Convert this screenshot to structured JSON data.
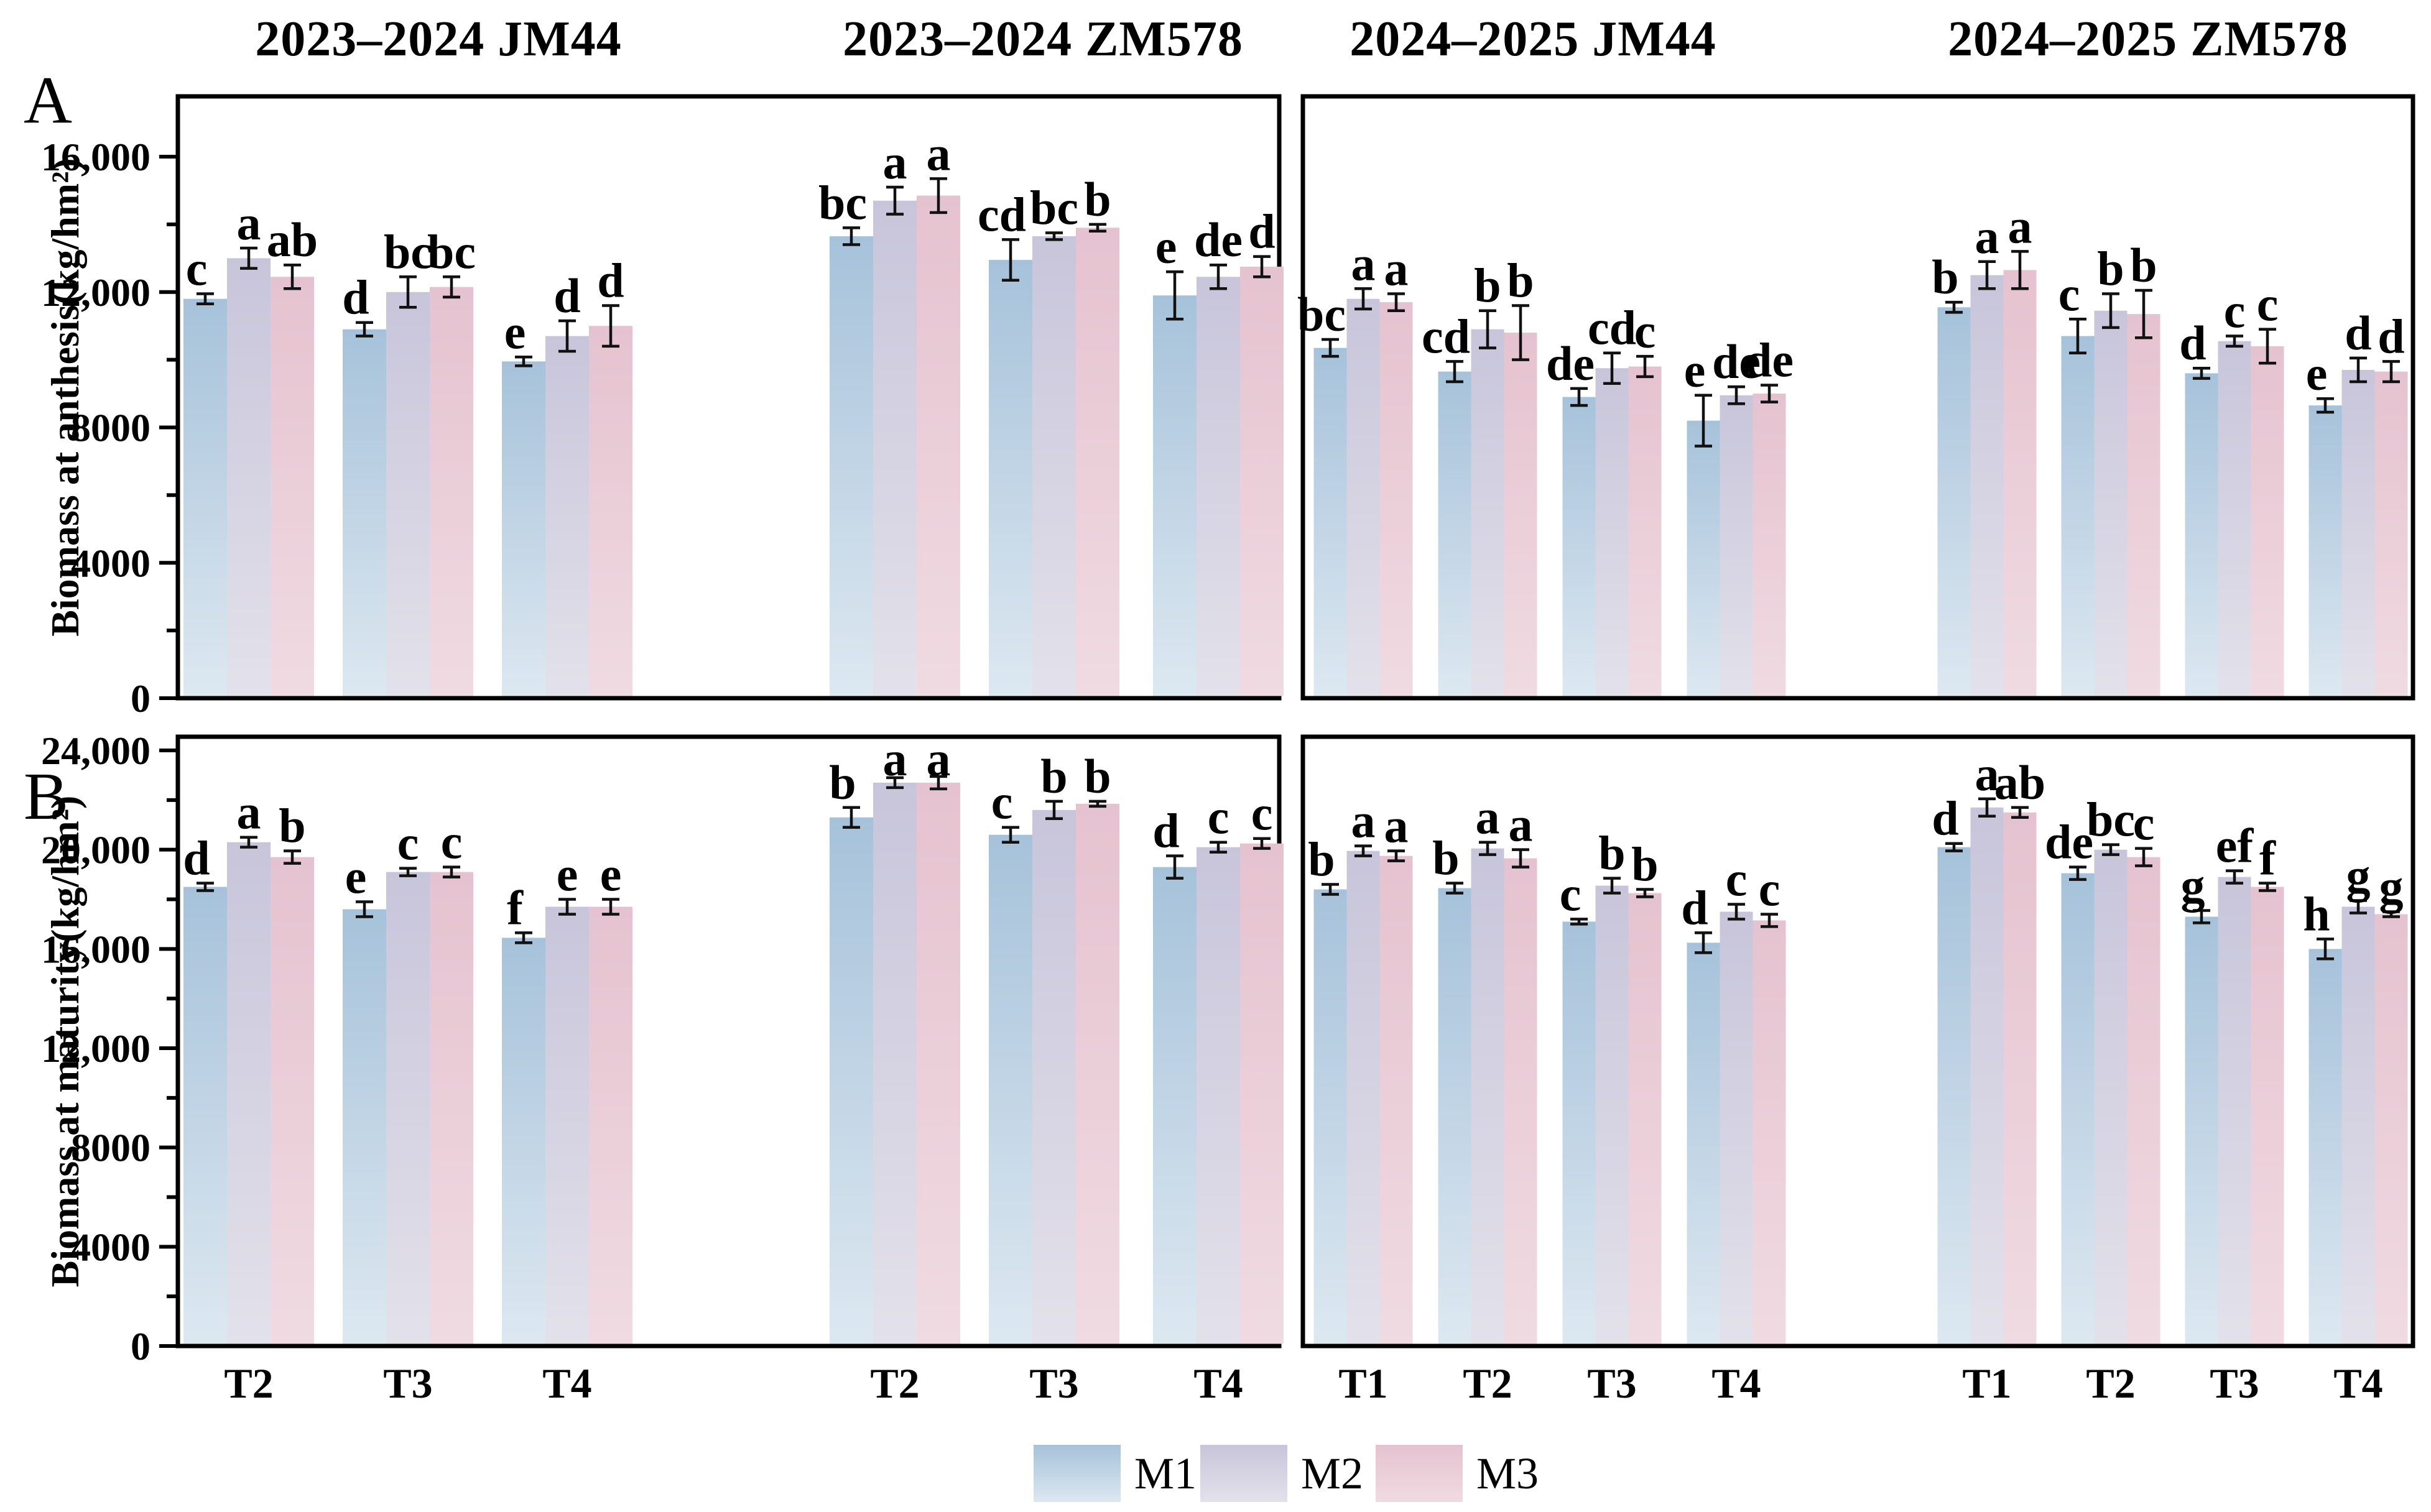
{
  "figure": {
    "panel_a": {
      "letter": "A",
      "ylabel": "Biomass at anthesis(kg/hm²)"
    },
    "panel_b": {
      "letter": "B",
      "ylabel": "Biomass at maturity(kg/hm²)"
    }
  },
  "legend": {
    "items": [
      {
        "label": "M1",
        "color_top": "#a6c2da",
        "color_bottom": "#dde8f1"
      },
      {
        "label": "M2",
        "color_top": "#c8c5db",
        "color_bottom": "#e3e1ea"
      },
      {
        "label": "M3",
        "color_top": "#e5c2cf",
        "color_bottom": "#f0dbe2"
      }
    ]
  },
  "chart_data": {
    "type": "bar",
    "unit": "kg/hm²",
    "grid": false,
    "error_bars": true,
    "legend_position": "bottom",
    "group_titles": [
      "2023–2024 JM44",
      "2023–2024 ZM578",
      "2024–2025 JM44",
      "2024–2025 ZM578"
    ],
    "rows": [
      {
        "id": "A",
        "ylabel": "Biomass at anthesis(kg/hm²)",
        "ylim": [
          0,
          16000
        ],
        "yticks": [
          {
            "v": 0,
            "label": "0"
          },
          {
            "v": 4000,
            "label": "4000"
          },
          {
            "v": 8000,
            "label": "8000"
          },
          {
            "v": 12000,
            "label": "12,000"
          },
          {
            "v": 16000,
            "label": "16,000"
          }
        ],
        "yticks_minor": [
          2000,
          6000,
          10000,
          14000
        ],
        "boxes": [
          {
            "groups": [
              {
                "title": "2023–2024 JM44",
                "categories": [
                  "T2",
                  "T3",
                  "T4"
                ],
                "series": [
                  {
                    "name": "M1",
                    "values": [
                      11800,
                      10900,
                      9950
                    ],
                    "errors": [
                      150,
                      200,
                      130
                    ],
                    "letters": [
                      "c",
                      "d",
                      "e"
                    ]
                  },
                  {
                    "name": "M2",
                    "values": [
                      13000,
                      12000,
                      10700
                    ],
                    "errors": [
                      300,
                      450,
                      450
                    ],
                    "letters": [
                      "a",
                      "bc",
                      "d"
                    ]
                  },
                  {
                    "name": "M3",
                    "values": [
                      12450,
                      12150,
                      11000
                    ],
                    "errors": [
                      350,
                      300,
                      600
                    ],
                    "letters": [
                      "ab",
                      "bc",
                      "d"
                    ]
                  }
                ]
              },
              {
                "title": "2023–2024 ZM578",
                "categories": [
                  "T2",
                  "T3",
                  "T4"
                ],
                "series": [
                  {
                    "name": "M1",
                    "values": [
                      13650,
                      12950,
                      11900
                    ],
                    "errors": [
                      250,
                      600,
                      700
                    ],
                    "letters": [
                      "bc",
                      "cd",
                      "e"
                    ]
                  },
                  {
                    "name": "M2",
                    "values": [
                      14700,
                      13650,
                      12450
                    ],
                    "errors": [
                      400,
                      100,
                      350
                    ],
                    "letters": [
                      "a",
                      "bc",
                      "de"
                    ]
                  },
                  {
                    "name": "M3",
                    "values": [
                      14850,
                      13900,
                      12750
                    ],
                    "errors": [
                      500,
                      100,
                      300
                    ],
                    "letters": [
                      "a",
                      "b",
                      "d"
                    ]
                  }
                ]
              }
            ]
          },
          {
            "groups": [
              {
                "title": "2024–2025 JM44",
                "categories": [
                  "T1",
                  "T2",
                  "T3",
                  "T4"
                ],
                "series": [
                  {
                    "name": "M1",
                    "values": [
                      10350,
                      9650,
                      8900,
                      8200
                    ],
                    "errors": [
                      250,
                      300,
                      250,
                      750
                    ],
                    "letters": [
                      "bc",
                      "cd",
                      "de",
                      "e"
                    ]
                  },
                  {
                    "name": "M2",
                    "values": [
                      11800,
                      10900,
                      9750,
                      8950
                    ],
                    "errors": [
                      300,
                      550,
                      450,
                      250
                    ],
                    "letters": [
                      "a",
                      "b",
                      "cd",
                      "de"
                    ]
                  },
                  {
                    "name": "M3",
                    "values": [
                      11700,
                      10800,
                      9800,
                      9000
                    ],
                    "errors": [
                      250,
                      800,
                      300,
                      250
                    ],
                    "letters": [
                      "a",
                      "b",
                      "c",
                      "de"
                    ]
                  }
                ]
              },
              {
                "title": "2024–2025 ZM578",
                "categories": [
                  "T1",
                  "T2",
                  "T3",
                  "T4"
                ],
                "series": [
                  {
                    "name": "M1",
                    "values": [
                      11550,
                      10700,
                      9600,
                      8650
                    ],
                    "errors": [
                      150,
                      500,
                      150,
                      200
                    ],
                    "letters": [
                      "b",
                      "c",
                      "d",
                      "e"
                    ]
                  },
                  {
                    "name": "M2",
                    "values": [
                      12500,
                      11450,
                      10550,
                      9700
                    ],
                    "errors": [
                      400,
                      500,
                      150,
                      350
                    ],
                    "letters": [
                      "a",
                      "b",
                      "c",
                      "d"
                    ]
                  },
                  {
                    "name": "M3",
                    "values": [
                      12650,
                      11350,
                      10400,
                      9650
                    ],
                    "errors": [
                      550,
                      700,
                      500,
                      300
                    ],
                    "letters": [
                      "a",
                      "b",
                      "c",
                      "d"
                    ]
                  }
                ]
              }
            ]
          }
        ]
      },
      {
        "id": "B",
        "ylabel": "Biomass at maturity(kg/hm²)",
        "ylim": [
          0,
          24000
        ],
        "yticks": [
          {
            "v": 0,
            "label": "0"
          },
          {
            "v": 4000,
            "label": "4000"
          },
          {
            "v": 8000,
            "label": "8000"
          },
          {
            "v": 12000,
            "label": "12,000"
          },
          {
            "v": 16000,
            "label": "16,000"
          },
          {
            "v": 20000,
            "label": "20,000"
          },
          {
            "v": 24000,
            "label": "24,000"
          }
        ],
        "yticks_minor": [
          2000,
          6000,
          10000,
          14000,
          18000,
          22000
        ],
        "boxes": [
          {
            "groups": [
              {
                "title": "2023–2024 JM44",
                "categories": [
                  "T2",
                  "T3",
                  "T4"
                ],
                "series": [
                  {
                    "name": "M1",
                    "values": [
                      18500,
                      17600,
                      16450
                    ],
                    "errors": [
                      150,
                      300,
                      200
                    ],
                    "letters": [
                      "d",
                      "e",
                      "f"
                    ]
                  },
                  {
                    "name": "M2",
                    "values": [
                      20300,
                      19100,
                      17700
                    ],
                    "errors": [
                      200,
                      150,
                      300
                    ],
                    "letters": [
                      "a",
                      "c",
                      "e"
                    ]
                  },
                  {
                    "name": "M3",
                    "values": [
                      19700,
                      19100,
                      17700
                    ],
                    "errors": [
                      250,
                      200,
                      300
                    ],
                    "letters": [
                      "b",
                      "c",
                      "e"
                    ]
                  }
                ]
              },
              {
                "title": "2023–2024 ZM578",
                "categories": [
                  "T2",
                  "T3",
                  "T4"
                ],
                "series": [
                  {
                    "name": "M1",
                    "values": [
                      21300,
                      20600,
                      19300
                    ],
                    "errors": [
                      400,
                      300,
                      450
                    ],
                    "letters": [
                      "b",
                      "c",
                      "d"
                    ]
                  },
                  {
                    "name": "M2",
                    "values": [
                      22700,
                      21600,
                      20100
                    ],
                    "errors": [
                      200,
                      350,
                      200
                    ],
                    "letters": [
                      "a",
                      "b",
                      "c"
                    ]
                  },
                  {
                    "name": "M3",
                    "values": [
                      22700,
                      21850,
                      20250
                    ],
                    "errors": [
                      250,
                      100,
                      200
                    ],
                    "letters": [
                      "a",
                      "b",
                      "c"
                    ]
                  }
                ]
              }
            ]
          },
          {
            "groups": [
              {
                "title": "2024–2025 JM44",
                "categories": [
                  "T1",
                  "T2",
                  "T3",
                  "T4"
                ],
                "series": [
                  {
                    "name": "M1",
                    "values": [
                      18400,
                      18450,
                      17100,
                      16250
                    ],
                    "errors": [
                      200,
                      200,
                      100,
                      400
                    ],
                    "letters": [
                      "b",
                      "b",
                      "c",
                      "d"
                    ]
                  },
                  {
                    "name": "M2",
                    "values": [
                      19950,
                      20050,
                      18550,
                      17500
                    ],
                    "errors": [
                      200,
                      250,
                      300,
                      300
                    ],
                    "letters": [
                      "a",
                      "a",
                      "b",
                      "c"
                    ]
                  },
                  {
                    "name": "M3",
                    "values": [
                      19750,
                      19650,
                      18250,
                      17150
                    ],
                    "errors": [
                      200,
                      350,
                      150,
                      250
                    ],
                    "letters": [
                      "a",
                      "a",
                      "b",
                      "c"
                    ]
                  }
                ]
              },
              {
                "title": "2024–2025 ZM578",
                "categories": [
                  "T1",
                  "T2",
                  "T3",
                  "T4"
                ],
                "series": [
                  {
                    "name": "M1",
                    "values": [
                      20100,
                      19050,
                      17300,
                      16000
                    ],
                    "errors": [
                      150,
                      250,
                      250,
                      400
                    ],
                    "letters": [
                      "d",
                      "de",
                      "g",
                      "h"
                    ]
                  },
                  {
                    "name": "M2",
                    "values": [
                      21700,
                      20000,
                      18900,
                      17700
                    ],
                    "errors": [
                      350,
                      200,
                      250,
                      250
                    ],
                    "letters": [
                      "a",
                      "bc",
                      "ef",
                      "g"
                    ]
                  },
                  {
                    "name": "M3",
                    "values": [
                      21500,
                      19700,
                      18500,
                      17400
                    ],
                    "errors": [
                      200,
                      350,
                      150,
                      100
                    ],
                    "letters": [
                      "ab",
                      "c",
                      "f",
                      "g"
                    ]
                  }
                ]
              }
            ]
          }
        ]
      }
    ]
  }
}
